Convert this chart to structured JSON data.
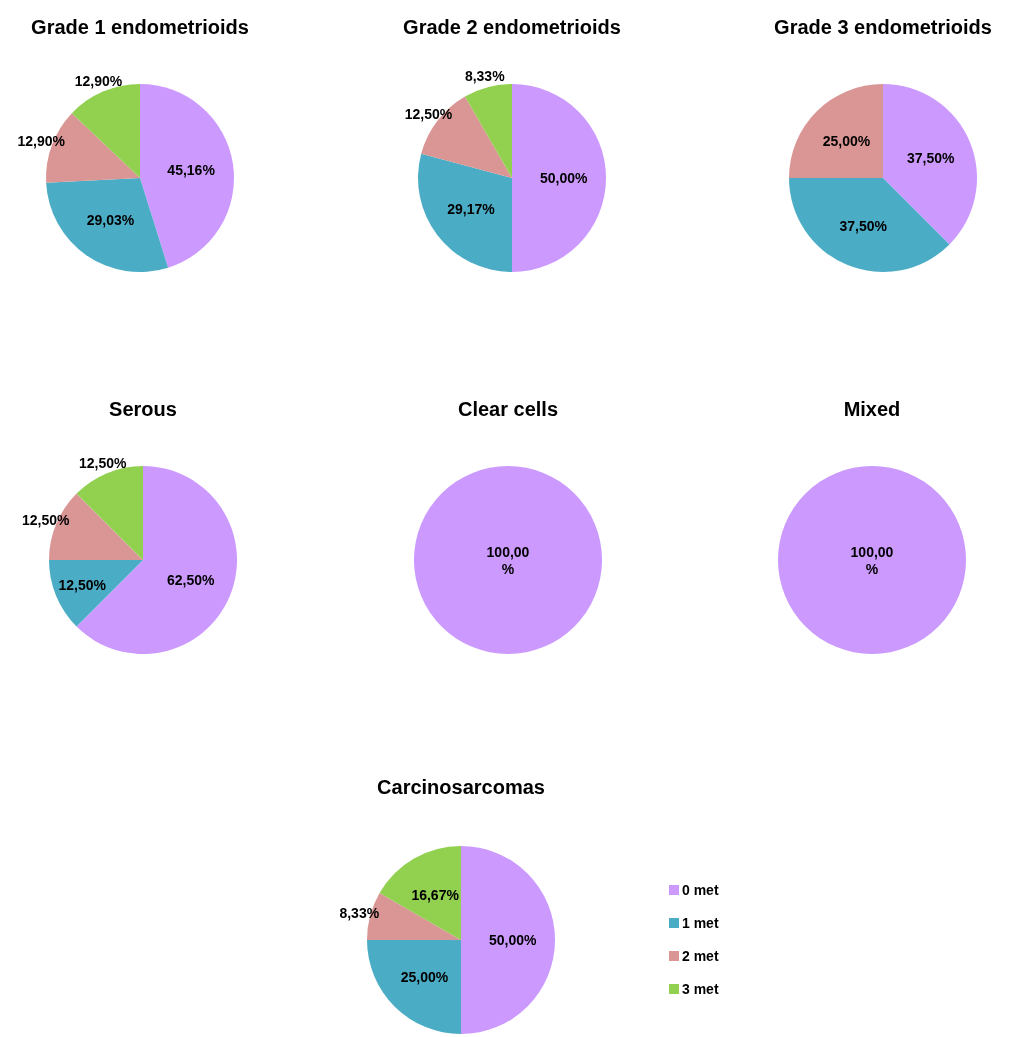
{
  "chart_data": [
    {
      "type": "pie",
      "title": "Grade 1 endometrioids",
      "categories": [
        null,
        null,
        null,
        null
      ],
      "values": [
        45.16,
        29.03,
        12.9,
        12.9
      ],
      "value_labels": [
        "45,16%",
        "29,03%",
        "12,90%",
        "12,90%"
      ],
      "colors": [
        "#cc99ff",
        "#4bacc6",
        "#d99694",
        "#92d050"
      ]
    },
    {
      "type": "pie",
      "title": "Grade 2 endometrioids",
      "categories": [
        null,
        null,
        null,
        null
      ],
      "values": [
        50,
        29.17,
        12.5,
        8.33
      ],
      "value_labels": [
        "50,00%",
        "29,17%",
        "12,50%",
        "8,33%"
      ],
      "colors": [
        "#cc99ff",
        "#4bacc6",
        "#d99694",
        "#92d050"
      ]
    },
    {
      "type": "pie",
      "title": "Grade 3 endometrioids",
      "categories": [
        null,
        null,
        null,
        null
      ],
      "values": [
        37.5,
        37.5,
        25,
        0
      ],
      "value_labels": [
        "37,50%",
        "37,50%",
        "25,00%",
        null
      ],
      "colors": [
        "#cc99ff",
        "#4bacc6",
        "#d99694",
        "#92d050"
      ]
    },
    {
      "type": "pie",
      "title": "Serous",
      "categories": [
        null,
        null,
        null,
        null
      ],
      "values": [
        62.5,
        12.5,
        12.5,
        12.5
      ],
      "value_labels": [
        "62,50%",
        "12,50%",
        "12,50%",
        "12,50%"
      ],
      "colors": [
        "#cc99ff",
        "#4bacc6",
        "#d99694",
        "#92d050"
      ]
    },
    {
      "type": "pie",
      "title": "Clear cells",
      "categories": [
        null,
        null,
        null,
        null
      ],
      "values": [
        100,
        0,
        0,
        0
      ],
      "value_labels": [
        "100,00%",
        null,
        null,
        null
      ],
      "colors": [
        "#cc99ff",
        "#4bacc6",
        "#d99694",
        "#92d050"
      ]
    },
    {
      "type": "pie",
      "title": "Mixed",
      "categories": [
        null,
        null,
        null,
        null
      ],
      "values": [
        100,
        0,
        0,
        0
      ],
      "value_labels": [
        "100,00%",
        null,
        null,
        null
      ],
      "colors": [
        "#cc99ff",
        "#4bacc6",
        "#d99694",
        "#92d050"
      ]
    },
    {
      "type": "pie",
      "title": "Carcinosarcomas",
      "categories": [
        "0 met",
        "1 met",
        "2 met",
        "3 met"
      ],
      "values": [
        50,
        25,
        8.33,
        16.67
      ],
      "value_labels": [
        "50,00%",
        "25,00%",
        "8,33%",
        "16,67%"
      ],
      "colors": [
        "#cc99ff",
        "#4bacc6",
        "#d99694",
        "#92d050"
      ],
      "legend": "right"
    }
  ]
}
